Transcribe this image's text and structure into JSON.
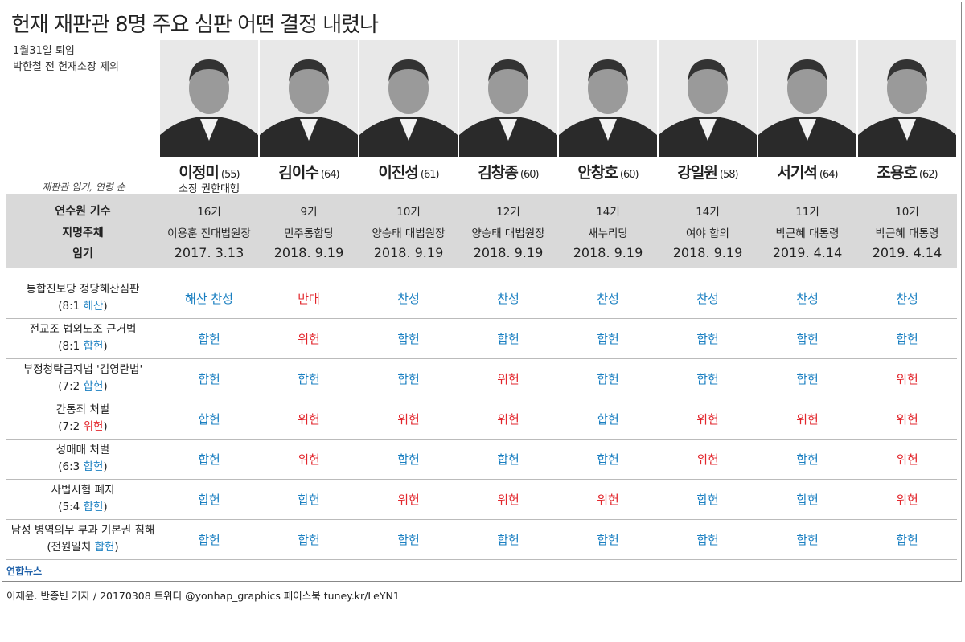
{
  "header": {
    "title": "헌재 재판관 8명 주요 심판 어떤 결정 내렸나",
    "notes": [
      "1월31일 퇴임",
      "박한철 전 헌재소장 제외"
    ],
    "order_note": "재판관 임기, 연령 순"
  },
  "justices": [
    {
      "name": "이정미",
      "age": "(55)",
      "role": "소장 권한대행"
    },
    {
      "name": "김이수",
      "age": "(64)"
    },
    {
      "name": "이진성",
      "age": "(61)"
    },
    {
      "name": "김창종",
      "age": "(60)"
    },
    {
      "name": "안창호",
      "age": "(60)"
    },
    {
      "name": "강일원",
      "age": "(58)"
    },
    {
      "name": "서기석",
      "age": "(64)"
    },
    {
      "name": "조용호",
      "age": "(62)"
    }
  ],
  "info": {
    "labels": [
      "연수원 기수",
      "지명주체",
      "임기"
    ],
    "rows": [
      [
        "16기",
        "9기",
        "10기",
        "12기",
        "14기",
        "14기",
        "11기",
        "10기"
      ],
      [
        "이용훈 전대법원장",
        "민주통합당",
        "양승태 대법원장",
        "양승태 대법원장",
        "새누리당",
        "여야 합의",
        "박근혜 대통령",
        "박근혜 대통령"
      ],
      [
        "2017. 3.13",
        "2018. 9.19",
        "2018. 9.19",
        "2018. 9.19",
        "2018. 9.19",
        "2018. 9.19",
        "2019. 4.14",
        "2019. 4.14"
      ]
    ]
  },
  "colors": {
    "agree": "#1a7fc1",
    "dissent": "#e2262c"
  },
  "cases": [
    {
      "name": "통합진보당 정당해산심판",
      "prefix": "(8:1",
      "outcome": "해산",
      "suffix": ")",
      "outcome_color": "agree",
      "decisions": [
        "해산 찬성",
        "반대",
        "찬성",
        "찬성",
        "찬성",
        "찬성",
        "찬성",
        "찬성"
      ],
      "cell_colors": [
        "agree",
        "dissent",
        "agree",
        "agree",
        "agree",
        "agree",
        "agree",
        "agree"
      ]
    },
    {
      "name": "전교조 법외노조 근거법",
      "prefix": "(8:1",
      "outcome": "합헌",
      "suffix": ")",
      "outcome_color": "agree",
      "decisions": [
        "합헌",
        "위헌",
        "합헌",
        "합헌",
        "합헌",
        "합헌",
        "합헌",
        "합헌"
      ],
      "cell_colors": [
        "agree",
        "dissent",
        "agree",
        "agree",
        "agree",
        "agree",
        "agree",
        "agree"
      ]
    },
    {
      "name": "부정청탁금지법 '김영란법'",
      "prefix": "(7:2",
      "outcome": "합헌",
      "suffix": ")",
      "outcome_color": "agree",
      "decisions": [
        "합헌",
        "합헌",
        "합헌",
        "위헌",
        "합헌",
        "합헌",
        "합헌",
        "위헌"
      ],
      "cell_colors": [
        "agree",
        "agree",
        "agree",
        "dissent",
        "agree",
        "agree",
        "agree",
        "dissent"
      ]
    },
    {
      "name": "간통죄 처벌",
      "prefix": "(7:2",
      "outcome": "위헌",
      "suffix": ")",
      "outcome_color": "dissent",
      "decisions": [
        "합헌",
        "위헌",
        "위헌",
        "위헌",
        "합헌",
        "위헌",
        "위헌",
        "위헌"
      ],
      "cell_colors": [
        "agree",
        "dissent",
        "dissent",
        "dissent",
        "agree",
        "dissent",
        "dissent",
        "dissent"
      ]
    },
    {
      "name": "성매매 처벌",
      "prefix": "(6:3",
      "outcome": "합헌",
      "suffix": ")",
      "outcome_color": "agree",
      "decisions": [
        "합헌",
        "위헌",
        "합헌",
        "합헌",
        "합헌",
        "위헌",
        "합헌",
        "위헌"
      ],
      "cell_colors": [
        "agree",
        "dissent",
        "agree",
        "agree",
        "agree",
        "dissent",
        "agree",
        "dissent"
      ]
    },
    {
      "name": "사법시험 폐지",
      "prefix": "(5:4",
      "outcome": "합헌",
      "suffix": ")",
      "outcome_color": "agree",
      "decisions": [
        "합헌",
        "합헌",
        "위헌",
        "위헌",
        "위헌",
        "합헌",
        "합헌",
        "위헌"
      ],
      "cell_colors": [
        "agree",
        "agree",
        "dissent",
        "dissent",
        "dissent",
        "agree",
        "agree",
        "dissent"
      ]
    },
    {
      "name": "남성 병역의무 부과 기본권 침해",
      "prefix": "(전원일치",
      "outcome": "합헌",
      "suffix": ")",
      "outcome_color": "agree",
      "decisions": [
        "합헌",
        "합헌",
        "합헌",
        "합헌",
        "합헌",
        "합헌",
        "합헌",
        "합헌"
      ],
      "cell_colors": [
        "agree",
        "agree",
        "agree",
        "agree",
        "agree",
        "agree",
        "agree",
        "agree"
      ]
    }
  ],
  "footer": {
    "logo": "연합뉴스",
    "credit": "이재윤. 반종빈 기자 / 20170308  트위터 @yonhap_graphics  페이스북 tuney.kr/LeYN1"
  }
}
